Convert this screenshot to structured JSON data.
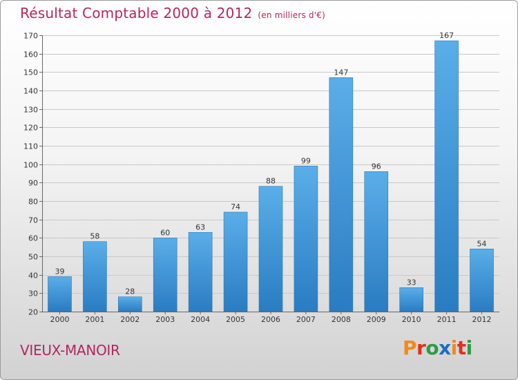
{
  "header": {
    "title": "Résultat Comptable 2000 à 2012",
    "subtitle": "(en milliers d'€)"
  },
  "footer": {
    "commune": "VIEUX-MANOIR",
    "logo_letters": [
      "P",
      "r",
      "o",
      "x",
      "i",
      "t",
      "i"
    ],
    "logo_colors": [
      "#f08a1c",
      "#e0301e",
      "#2e9a48",
      "#1a6fc0",
      "#f08a1c",
      "#e0301e",
      "#2e9a48"
    ]
  },
  "colors": {
    "title": "#b0285c",
    "bar_light": "#5aaee8",
    "bar_dark": "#2a7cc2",
    "grid": "#c8c8c8",
    "axis": "#666666"
  },
  "chart_data": {
    "type": "bar",
    "title": "Résultat Comptable 2000 à 2012",
    "xlabel": "",
    "ylabel": "",
    "ylim": [
      20,
      170
    ],
    "yticks": [
      20,
      30,
      40,
      50,
      60,
      70,
      80,
      90,
      100,
      110,
      120,
      130,
      140,
      150,
      160,
      170
    ],
    "categories": [
      "2000",
      "2001",
      "2002",
      "2003",
      "2004",
      "2005",
      "2006",
      "2007",
      "2008",
      "2009",
      "2010",
      "2011",
      "2012"
    ],
    "values": [
      39,
      58,
      28,
      60,
      63,
      74,
      88,
      99,
      147,
      96,
      33,
      167,
      54
    ],
    "grid": true
  }
}
